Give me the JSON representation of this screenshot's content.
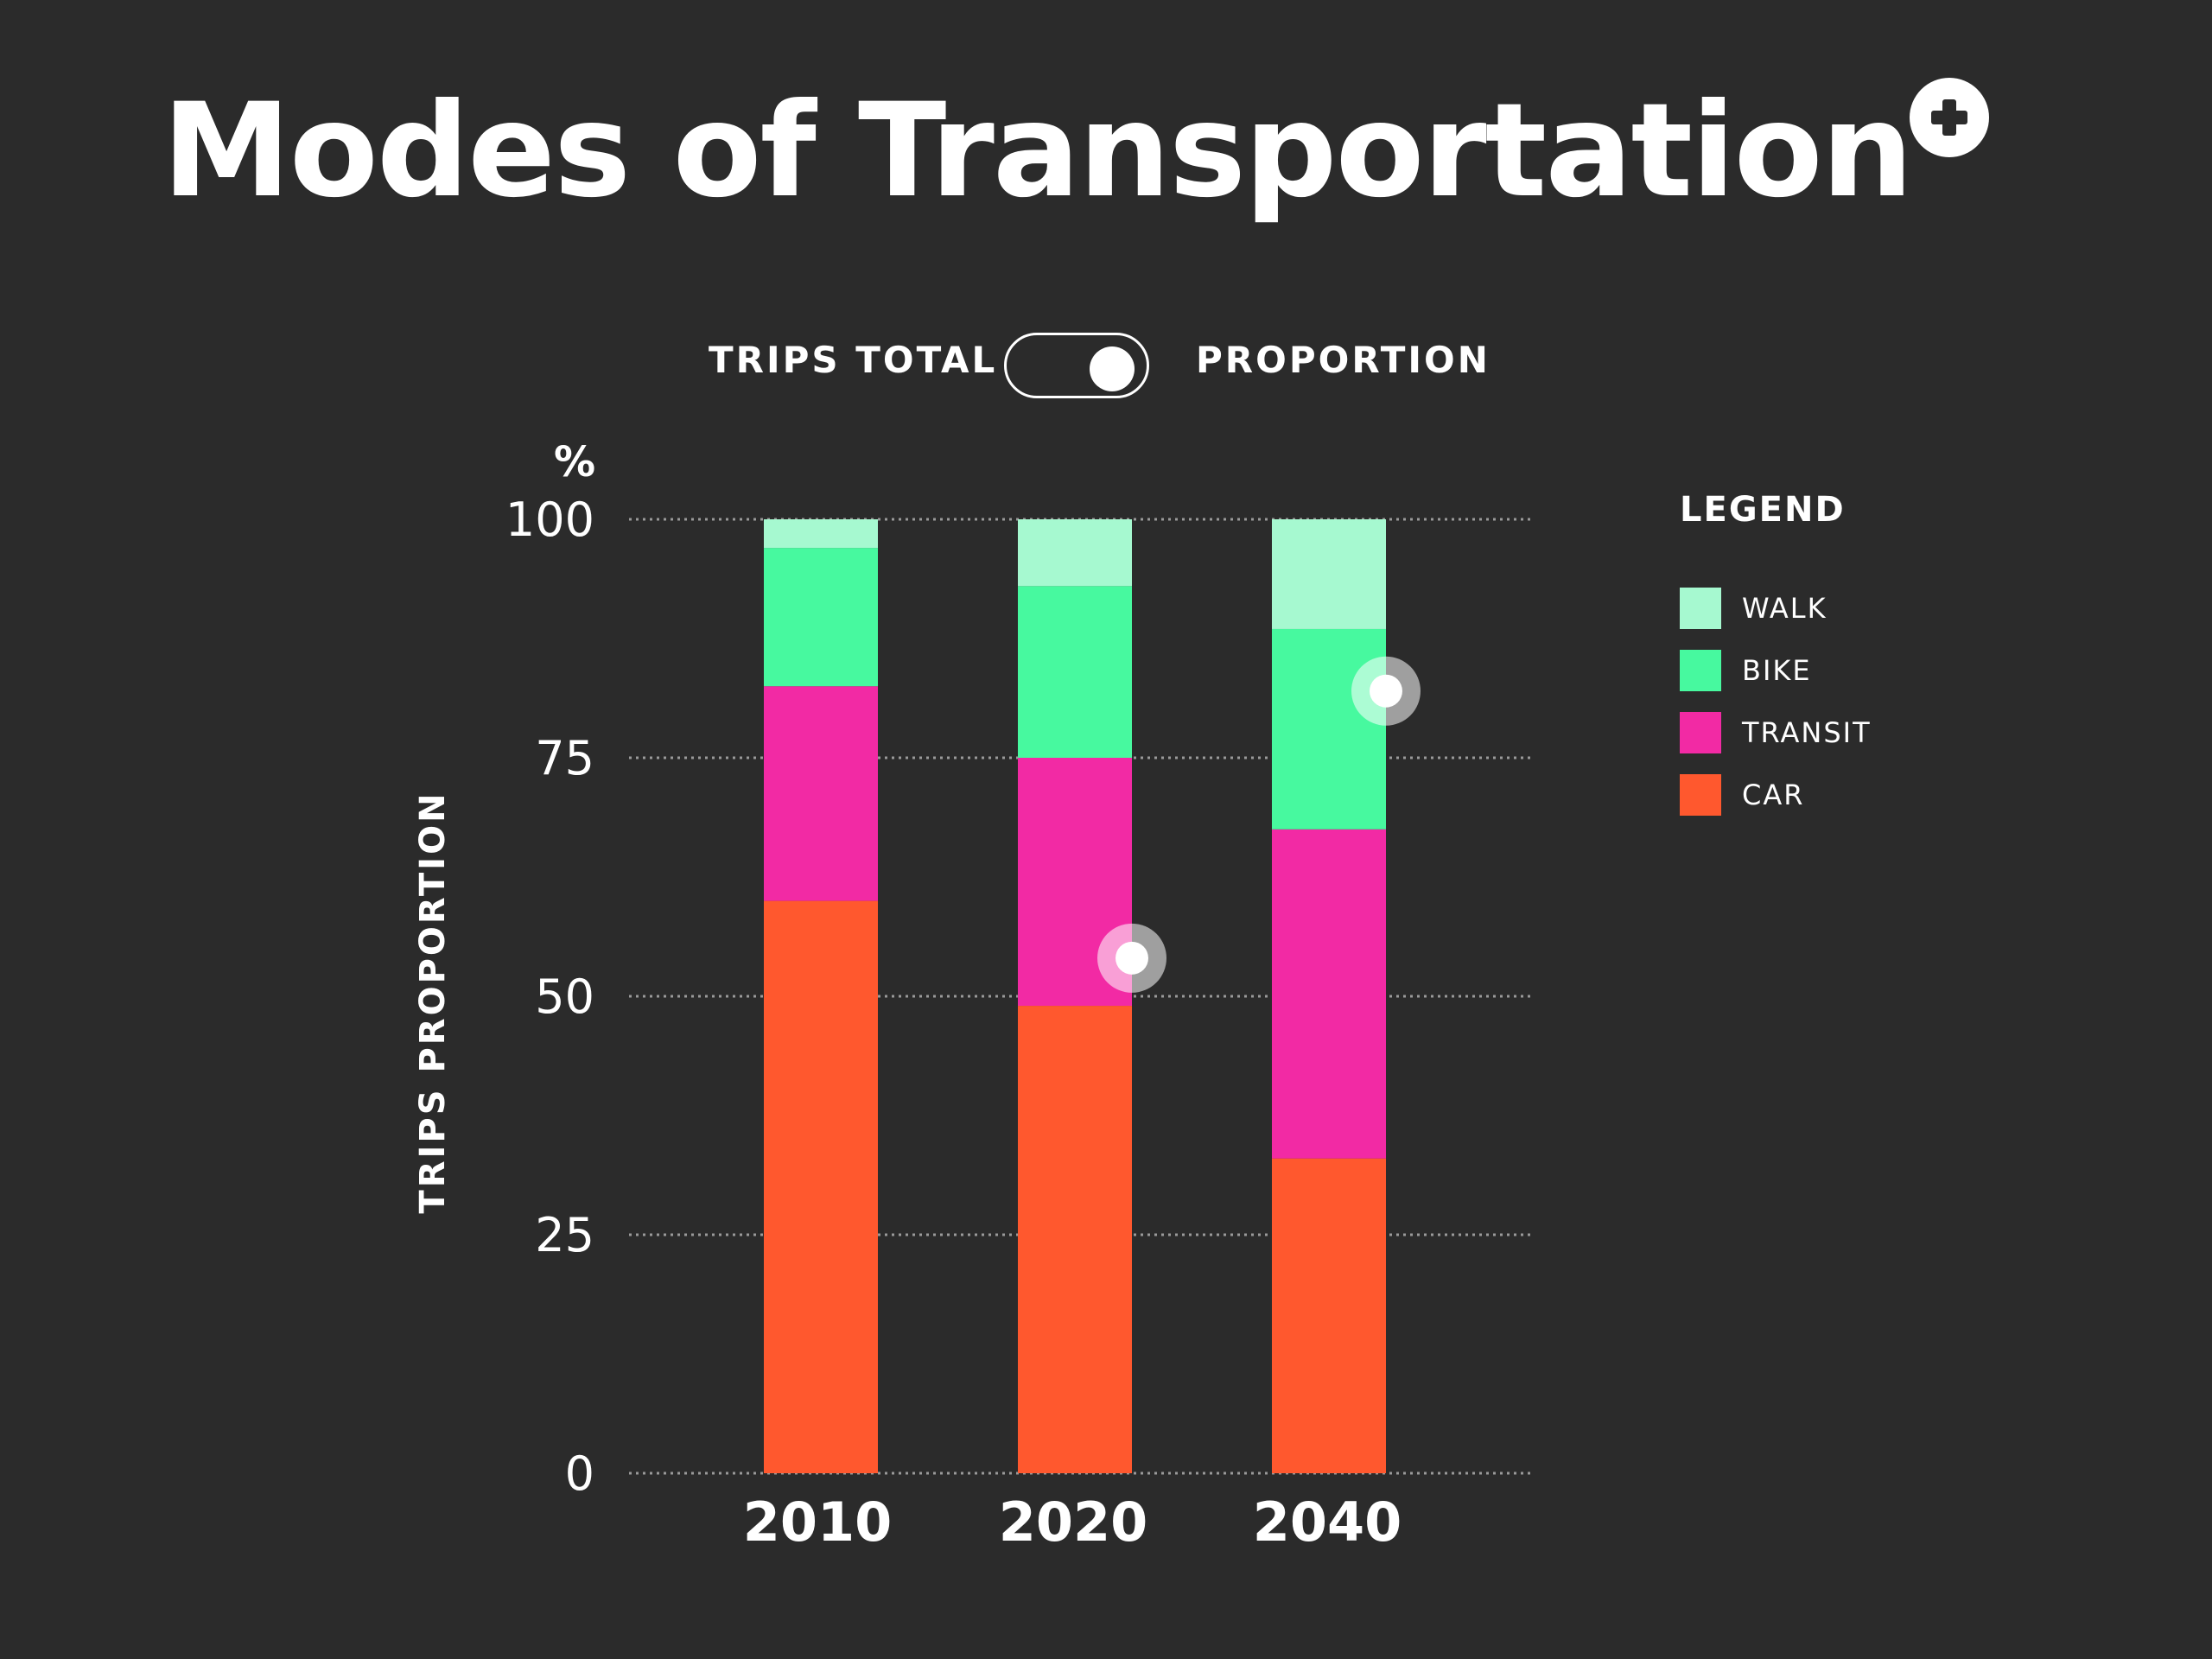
{
  "title": "Modes of Transportation",
  "add_button_icon": "plus-circle-icon",
  "toggle": {
    "left_label": "TRIPS TOTAL",
    "right_label": "PROPORTION",
    "selected": "PROPORTION"
  },
  "legend": {
    "title": "LEGEND",
    "items": [
      {
        "label": "WALK",
        "color": "#a6f9d0"
      },
      {
        "label": "BIKE",
        "color": "#47f99f"
      },
      {
        "label": "TRANSIT",
        "color": "#f22aa4"
      },
      {
        "label": "CAR",
        "color": "#ff582e"
      }
    ]
  },
  "colors": {
    "background": "#2b2b2b",
    "text": "#ffffff",
    "grid": "#9a9a9a"
  },
  "chart_data": {
    "type": "bar",
    "stacked": true,
    "title": "Modes of Transportation",
    "xlabel": "",
    "ylabel": "TRIPS PROPORTION",
    "y_unit": "%",
    "ylim": [
      0,
      100
    ],
    "y_ticks": [
      "0",
      "25",
      "50",
      "75",
      "100"
    ],
    "grid": true,
    "legend_position": "right",
    "categories": [
      "2010",
      "2020",
      "2040"
    ],
    "series": [
      {
        "name": "CAR",
        "color": "#ff582e",
        "values": [
          60,
          49,
          33
        ]
      },
      {
        "name": "TRANSIT",
        "color": "#f22aa4",
        "values": [
          22.5,
          26,
          34.5
        ]
      },
      {
        "name": "BIKE",
        "color": "#47f99f",
        "values": [
          14.5,
          18,
          21
        ]
      },
      {
        "name": "WALK",
        "color": "#a6f9d0",
        "values": [
          3,
          7,
          11.5
        ]
      }
    ],
    "markers": [
      {
        "category": "2020",
        "series": "TRANSIT",
        "value": 54
      },
      {
        "category": "2040",
        "series": "BIKE",
        "value": 82
      }
    ]
  }
}
